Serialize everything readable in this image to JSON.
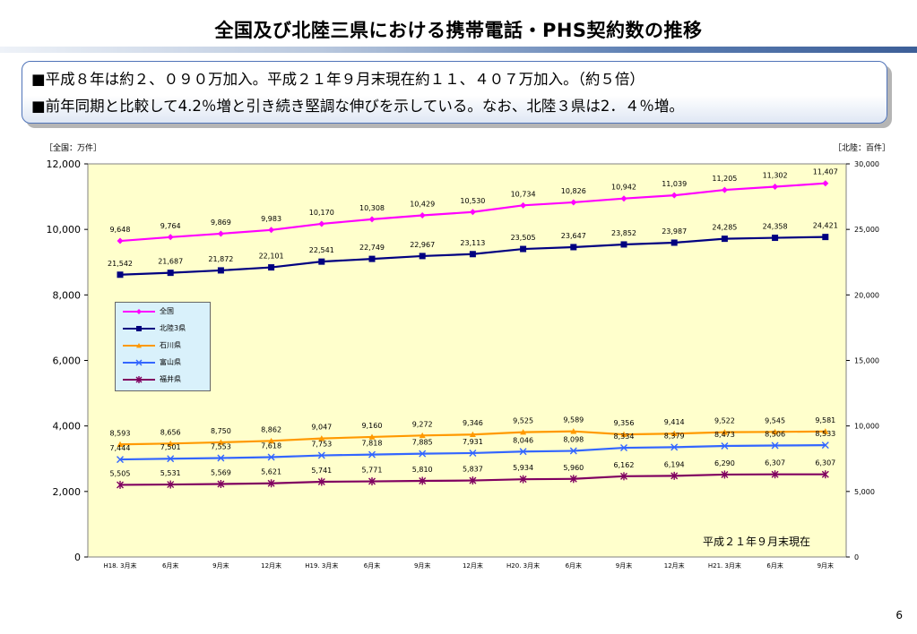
{
  "page": {
    "title": "全国及び北陸三県における携帯電話・PHS契約数の推移",
    "bullets": [
      "■平成８年は約２、０９０万加入。平成２１年９月末現在約１１、４０７万加入。（約５倍）",
      "■前年同期と比較して4.2％増と引き続き堅調な伸びを示している。なお、北陸３県は2．４％増。"
    ],
    "left_unit": "［全国：万件］",
    "right_unit": "［北陸：百件］",
    "note": "平成２１年９月末現在",
    "page_number": "6"
  },
  "chart_data": {
    "type": "line",
    "categories": [
      "H18. 3月末",
      "6月末",
      "9月末",
      "12月末",
      "H19. 3月末",
      "6月末",
      "9月末",
      "12月末",
      "H20. 3月末",
      "6月末",
      "9月末",
      "12月末",
      "H21. 3月末",
      "6月末",
      "9月末"
    ],
    "y_left": {
      "label": "［全国：万件］",
      "min": 0,
      "max": 12000,
      "ticks": [
        "0",
        "2,000",
        "4,000",
        "6,000",
        "8,000",
        "10,000",
        "12,000"
      ]
    },
    "y_right": {
      "label": "［北陸：百件］",
      "min": 0,
      "max": 30000,
      "ticks": [
        "0",
        "5,000",
        "10,000",
        "15,000",
        "20,000",
        "25,000",
        "30,000"
      ]
    },
    "series": [
      {
        "name": "全国",
        "axis": "left",
        "color": "#ff00ff",
        "marker": "diamond",
        "values": [
          9648,
          9764,
          9869,
          9983,
          10170,
          10308,
          10429,
          10530,
          10734,
          10826,
          10942,
          11039,
          11205,
          11302,
          11407
        ],
        "labels": [
          "9,648",
          "9,764",
          "9,869",
          "9,983",
          "10,170",
          "10,308",
          "10,429",
          "10,530",
          "10,734",
          "10,826",
          "10,942",
          "11,039",
          "11,205",
          "11,302",
          "11,407"
        ]
      },
      {
        "name": "北陸3県",
        "axis": "right",
        "color": "#000080",
        "marker": "square",
        "values": [
          21542,
          21687,
          21872,
          22101,
          22541,
          22749,
          22967,
          23113,
          23505,
          23647,
          23852,
          23987,
          24285,
          24358,
          24421
        ],
        "labels": [
          "21,542",
          "21,687",
          "21,872",
          "22,101",
          "22,541",
          "22,749",
          "22,967",
          "23,113",
          "23,505",
          "23,647",
          "23,852",
          "23,987",
          "24,285",
          "24,358",
          "24,421"
        ]
      },
      {
        "name": "石川県",
        "axis": "right",
        "color": "#ff9900",
        "marker": "triangle",
        "values": [
          8593,
          8656,
          8750,
          8862,
          9047,
          9160,
          9272,
          9346,
          9525,
          9589,
          9356,
          9414,
          9522,
          9545,
          9581
        ],
        "labels": [
          "8,593",
          "8,656",
          "8,750",
          "8,862",
          "9,047",
          "9,160",
          "9,272",
          "9,346",
          "9,525",
          "9,589",
          "9,356",
          "9,414",
          "9,522",
          "9,545",
          "9,581"
        ]
      },
      {
        "name": "富山県",
        "axis": "right",
        "color": "#3366ff",
        "marker": "x",
        "values": [
          7444,
          7501,
          7553,
          7618,
          7753,
          7818,
          7885,
          7931,
          8046,
          8098,
          8334,
          8379,
          8473,
          8506,
          8533
        ],
        "labels": [
          "7,444",
          "7,501",
          "7,553",
          "7,618",
          "7,753",
          "7,818",
          "7,885",
          "7,931",
          "8,046",
          "8,098",
          "8,334",
          "8,379",
          "8,473",
          "8,506",
          "8,533"
        ]
      },
      {
        "name": "福井県",
        "axis": "right",
        "color": "#800060",
        "marker": "star",
        "values": [
          5505,
          5531,
          5569,
          5621,
          5741,
          5771,
          5810,
          5837,
          5934,
          5960,
          6162,
          6194,
          6290,
          6307,
          6307
        ],
        "labels": [
          "5,505",
          "5,531",
          "5,569",
          "5,621",
          "5,741",
          "5,771",
          "5,810",
          "5,837",
          "5,934",
          "5,960",
          "6,162",
          "6,194",
          "6,290",
          "6,307",
          "6,307"
        ]
      }
    ],
    "legend_position": "left-middle",
    "plot_background": "#ffffcc"
  }
}
